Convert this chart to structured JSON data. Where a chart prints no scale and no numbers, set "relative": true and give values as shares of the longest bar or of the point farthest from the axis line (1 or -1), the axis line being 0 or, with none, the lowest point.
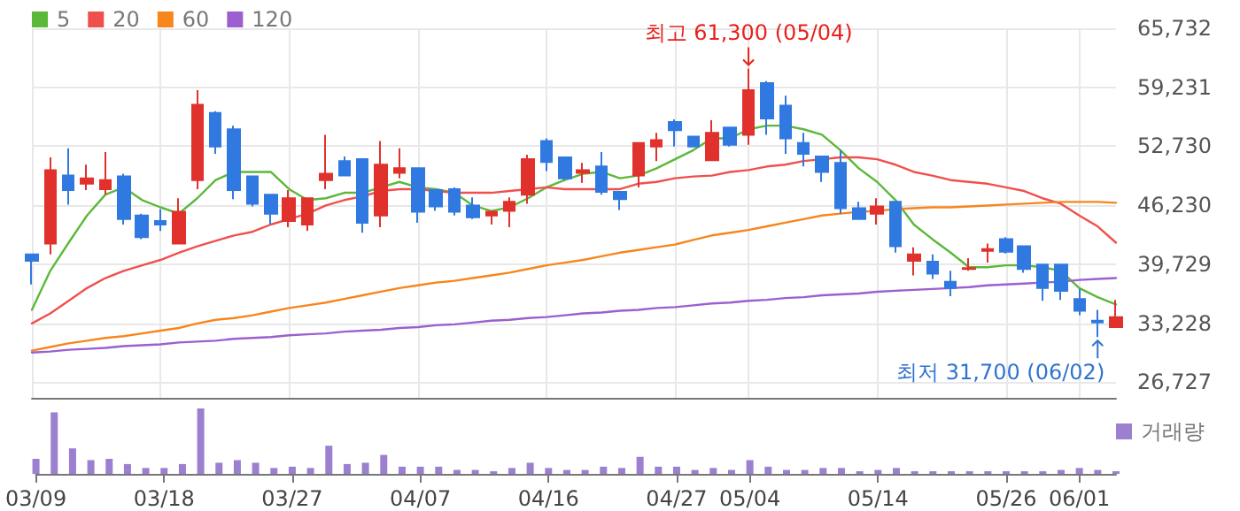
{
  "chart_data": [
    {
      "type": "candlestick",
      "categories": [
        "03/09",
        null,
        null,
        null,
        null,
        null,
        null,
        "03/18",
        null,
        null,
        null,
        null,
        null,
        null,
        "03/27",
        null,
        null,
        null,
        null,
        null,
        null,
        "04/07",
        null,
        null,
        null,
        null,
        null,
        null,
        "04/16",
        null,
        null,
        null,
        null,
        null,
        null,
        "04/27",
        null,
        null,
        null,
        "05/04",
        null,
        null,
        null,
        null,
        null,
        null,
        "05/14",
        null,
        null,
        null,
        null,
        null,
        null,
        "05/26",
        null,
        null,
        null,
        "06/01",
        null,
        null
      ],
      "ohlc": [
        [
          40800,
          40800,
          37500,
          40100
        ],
        [
          42000,
          51500,
          40800,
          50100
        ],
        [
          49500,
          52500,
          46300,
          47900
        ],
        [
          48600,
          50700,
          47900,
          49200
        ],
        [
          48000,
          52100,
          47400,
          49000
        ],
        [
          49400,
          49700,
          44100,
          44700
        ],
        [
          45100,
          45300,
          42500,
          42700
        ],
        [
          44500,
          45800,
          43400,
          44100
        ],
        [
          42000,
          47000,
          42000,
          45500
        ],
        [
          49000,
          58900,
          48000,
          57300
        ],
        [
          56400,
          56600,
          51900,
          52700
        ],
        [
          54600,
          55000,
          46900,
          47900
        ],
        [
          49400,
          49400,
          46100,
          46400
        ],
        [
          47400,
          47400,
          44100,
          45300
        ],
        [
          44500,
          47900,
          43800,
          47000
        ],
        [
          44100,
          47000,
          43400,
          47000
        ],
        [
          49000,
          54000,
          48000,
          49700
        ],
        [
          51100,
          51600,
          49400,
          49500
        ],
        [
          51300,
          51300,
          43200,
          44300
        ],
        [
          45100,
          53300,
          43800,
          50700
        ],
        [
          49800,
          52500,
          49200,
          50300
        ],
        [
          50300,
          50300,
          44300,
          45500
        ],
        [
          47900,
          47900,
          45600,
          46100
        ],
        [
          48000,
          48200,
          45100,
          45500
        ],
        [
          46200,
          47100,
          44700,
          44900
        ],
        [
          45100,
          45600,
          44100,
          45500
        ],
        [
          45600,
          47100,
          43800,
          46600
        ],
        [
          47400,
          51800,
          46400,
          51300
        ],
        [
          53300,
          53600,
          50000,
          51000
        ],
        [
          51500,
          51500,
          49000,
          49200
        ],
        [
          49800,
          50900,
          48700,
          50100
        ],
        [
          50500,
          52100,
          47400,
          47700
        ],
        [
          47700,
          47700,
          45700,
          46900
        ],
        [
          49500,
          53100,
          48200,
          53100
        ],
        [
          52700,
          54200,
          51100,
          53400
        ],
        [
          55400,
          55700,
          52700,
          54500
        ],
        [
          53800,
          53800,
          52600,
          52700
        ],
        [
          51200,
          55600,
          51200,
          54200
        ],
        [
          54800,
          54800,
          52700,
          52900
        ],
        [
          54000,
          61300,
          52900,
          58900
        ],
        [
          59700,
          59900,
          54000,
          55800
        ],
        [
          57200,
          58300,
          51900,
          53600
        ],
        [
          53100,
          54200,
          50500,
          51900
        ],
        [
          51600,
          51600,
          48800,
          49900
        ],
        [
          50900,
          52300,
          45300,
          45900
        ],
        [
          45900,
          46600,
          44700,
          44700
        ],
        [
          45300,
          47000,
          44100,
          46100
        ],
        [
          46600,
          46600,
          41000,
          41700
        ],
        [
          40100,
          41600,
          38500,
          40800
        ],
        [
          40000,
          40800,
          38100,
          38700
        ],
        [
          37800,
          39000,
          36200,
          37100
        ],
        [
          39200,
          40400,
          39000,
          39300
        ],
        [
          41200,
          42000,
          39900,
          41400
        ],
        [
          42500,
          42700,
          40900,
          41100
        ],
        [
          41700,
          41700,
          38800,
          39200
        ],
        [
          39700,
          39700,
          35700,
          37100
        ],
        [
          39700,
          39700,
          35800,
          36800
        ],
        [
          35900,
          37000,
          34100,
          34600
        ],
        [
          33500,
          34700,
          31700,
          33300
        ],
        [
          32800,
          35800,
          32800,
          33900
        ]
      ],
      "series": [
        {
          "type": "line",
          "name": "5",
          "color": "#5cb83a",
          "values": [
            34700,
            39000,
            42100,
            45100,
            47400,
            48200,
            46800,
            46000,
            45300,
            47000,
            49000,
            49900,
            49900,
            49900,
            48000,
            46800,
            47000,
            47600,
            47600,
            48200,
            48800,
            48200,
            48000,
            47600,
            46200,
            45600,
            46000,
            47000,
            48200,
            49000,
            49700,
            49900,
            49200,
            49500,
            50300,
            51300,
            52300,
            53600,
            53600,
            54600,
            55000,
            55000,
            54600,
            54000,
            52300,
            50300,
            48800,
            46800,
            44100,
            42500,
            41000,
            39400,
            39400,
            39600,
            39600,
            39400,
            39000,
            37100,
            36100,
            35300
          ]
        },
        {
          "type": "line",
          "name": "20",
          "color": "#f0504d",
          "values": [
            33200,
            34300,
            35700,
            37100,
            38200,
            39000,
            39600,
            40200,
            41000,
            41700,
            42300,
            42900,
            43300,
            44100,
            44700,
            45300,
            46200,
            46800,
            47200,
            47800,
            48000,
            48000,
            47800,
            47600,
            47600,
            47600,
            47800,
            48000,
            48200,
            48000,
            48000,
            48000,
            48000,
            48600,
            48800,
            49200,
            49400,
            49500,
            49900,
            50100,
            50500,
            50700,
            51100,
            51300,
            51500,
            51500,
            51300,
            50700,
            49900,
            49500,
            49000,
            48800,
            48600,
            48200,
            47800,
            47000,
            46400,
            45100,
            43900,
            42100
          ]
        },
        {
          "type": "line",
          "name": "60",
          "color": "#f7861c",
          "values": [
            30200,
            30600,
            31000,
            31300,
            31600,
            31800,
            32100,
            32400,
            32700,
            33200,
            33600,
            33800,
            34100,
            34500,
            34900,
            35200,
            35500,
            35900,
            36300,
            36700,
            37100,
            37400,
            37700,
            37900,
            38200,
            38500,
            38800,
            39200,
            39600,
            39900,
            40200,
            40600,
            41000,
            41300,
            41600,
            41900,
            42400,
            42900,
            43200,
            43500,
            43900,
            44300,
            44700,
            45100,
            45300,
            45500,
            45600,
            45800,
            45900,
            46000,
            46000,
            46100,
            46200,
            46300,
            46400,
            46500,
            46600,
            46600,
            46600,
            46500
          ]
        },
        {
          "type": "line",
          "name": "120",
          "color": "#9b5fcf",
          "values": [
            30000,
            30100,
            30300,
            30400,
            30500,
            30700,
            30800,
            30900,
            31100,
            31200,
            31300,
            31500,
            31600,
            31700,
            31900,
            32000,
            32100,
            32300,
            32400,
            32500,
            32700,
            32800,
            33000,
            33100,
            33300,
            33500,
            33600,
            33800,
            33900,
            34100,
            34300,
            34400,
            34600,
            34700,
            34900,
            35000,
            35200,
            35400,
            35500,
            35700,
            35800,
            36000,
            36100,
            36300,
            36400,
            36500,
            36700,
            36800,
            36900,
            37000,
            37100,
            37200,
            37400,
            37500,
            37600,
            37700,
            37800,
            38000,
            38100,
            38200
          ]
        }
      ],
      "ylim": [
        25000,
        65732
      ],
      "yticks": [
        {
          "value": 26727,
          "label": "26,727"
        },
        {
          "value": 33228,
          "label": "33,228"
        },
        {
          "value": 39729,
          "label": "39,729"
        },
        {
          "value": 46230,
          "label": "46,230"
        },
        {
          "value": 52730,
          "label": "52,730"
        },
        {
          "value": 59231,
          "label": "59,231"
        },
        {
          "value": 65732,
          "label": "65,732"
        }
      ],
      "grid": true,
      "legend": "top left",
      "tick_labels": "y",
      "marker": "none",
      "annotations": [
        {
          "text": "최고 61,300 (05/04)",
          "x": "05/04",
          "y": 61300
        },
        "최저 31,700 (06/02)"
      ]
    },
    {
      "type": "bar",
      "relative": true,
      "categories": [
        "03/09",
        null,
        null,
        null,
        null,
        null,
        null,
        "03/18",
        null,
        null,
        null,
        null,
        null,
        null,
        "03/27",
        null,
        null,
        null,
        null,
        null,
        null,
        "04/07",
        null,
        null,
        null,
        null,
        null,
        null,
        "04/16",
        null,
        null,
        null,
        null,
        null,
        null,
        "04/27",
        null,
        null,
        null,
        "05/04",
        null,
        null,
        null,
        null,
        null,
        null,
        "05/14",
        null,
        null,
        null,
        null,
        null,
        null,
        "05/26",
        null,
        null,
        null,
        "06/01",
        null,
        null
      ],
      "series": [
        {
          "name": "거래량",
          "color": "#9a80cf",
          "values": [
            0.23,
            0.94,
            0.39,
            0.21,
            0.23,
            0.15,
            0.09,
            0.09,
            0.15,
            1,
            0.17,
            0.21,
            0.17,
            0.09,
            0.11,
            0.09,
            0.43,
            0.15,
            0.17,
            0.29,
            0.11,
            0.11,
            0.11,
            0.06,
            0.06,
            0.04,
            0.09,
            0.17,
            0.09,
            0.06,
            0.06,
            0.11,
            0.09,
            0.26,
            0.11,
            0.11,
            0.06,
            0.09,
            0.06,
            0.21,
            0.11,
            0.06,
            0.06,
            0.09,
            0.09,
            0.04,
            0.06,
            0.09,
            0.04,
            0.04,
            0.04,
            0.04,
            0.04,
            0.04,
            0.04,
            0.04,
            0.06,
            0.09,
            0.06,
            0.04
          ]
        }
      ],
      "legend": "top right",
      "tick_labels": "x",
      "grid": false
    }
  ]
}
